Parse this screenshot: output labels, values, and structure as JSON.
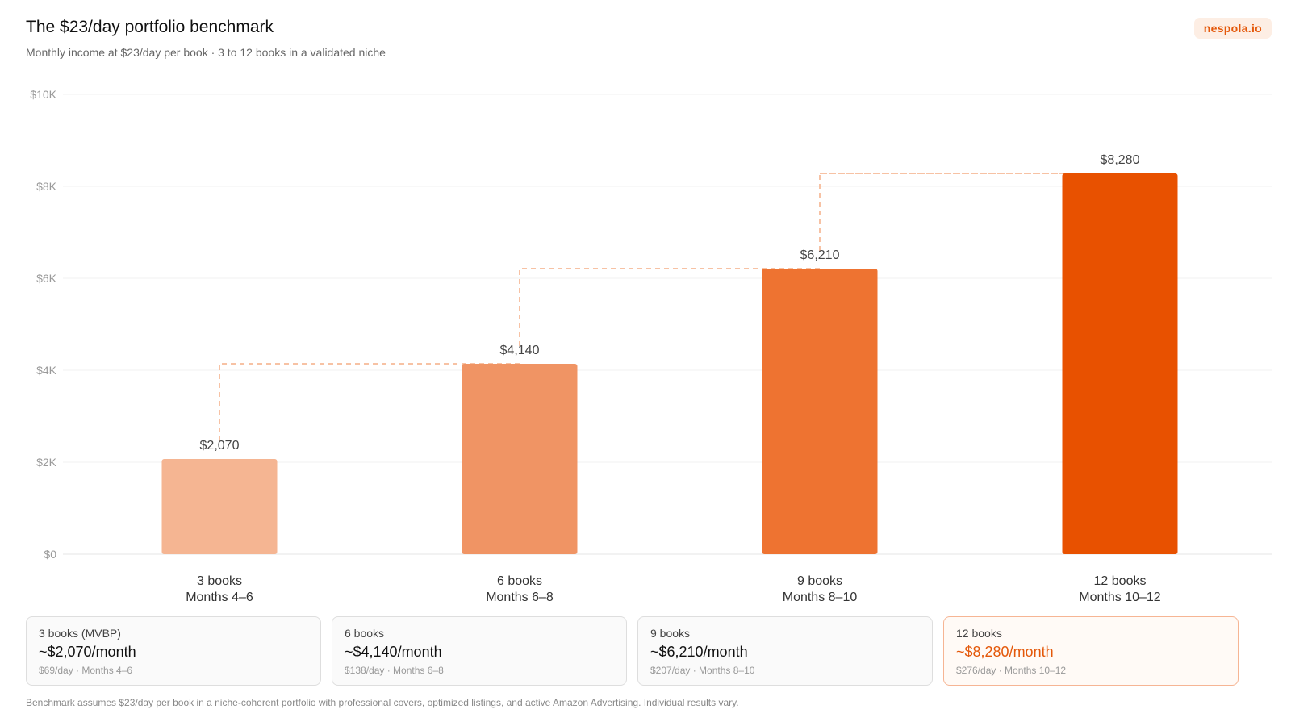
{
  "header": {
    "title": "The $23/day portfolio benchmark",
    "subtitle": "Monthly income at $23/day per book · 3 to 12 books in a validated niche",
    "brand": "nespola.io"
  },
  "chart_data": {
    "type": "bar",
    "categories": [
      "3 books",
      "6 books",
      "9 books",
      "12 books"
    ],
    "category_sublabels": [
      "Months 4–6",
      "Months 6–8",
      "Months 8–10",
      "Months 10–12"
    ],
    "values": [
      2070,
      4140,
      6210,
      8280
    ],
    "value_labels": [
      "$2,070",
      "$4,140",
      "$6,210",
      "$8,280"
    ],
    "ylim": [
      0,
      10000
    ],
    "yticks": [
      0,
      2000,
      4000,
      6000,
      8000,
      10000
    ],
    "ytick_labels": [
      "$0",
      "$2K",
      "$4K",
      "$6K",
      "$8K",
      "$10K"
    ],
    "bar_colors": [
      "#f5b592",
      "#f09464",
      "#ee7331",
      "#e85100"
    ],
    "connector_color": "#f7c2a4",
    "grid": true
  },
  "cards": [
    {
      "label": "3 books (MVBP)",
      "value": "~$2,070/month",
      "detail": "$69/day · Months 4–6",
      "highlight": false
    },
    {
      "label": "6 books",
      "value": "~$4,140/month",
      "detail": "$138/day · Months 6–8",
      "highlight": false
    },
    {
      "label": "9 books",
      "value": "~$6,210/month",
      "detail": "$207/day · Months 8–10",
      "highlight": false
    },
    {
      "label": "12 books",
      "value": "~$8,280/month",
      "detail": "$276/day · Months 10–12",
      "highlight": true
    }
  ],
  "footnote": "Benchmark assumes $23/day per book in a niche-coherent portfolio with professional covers, optimized listings, and active Amazon Advertising. Individual results vary."
}
